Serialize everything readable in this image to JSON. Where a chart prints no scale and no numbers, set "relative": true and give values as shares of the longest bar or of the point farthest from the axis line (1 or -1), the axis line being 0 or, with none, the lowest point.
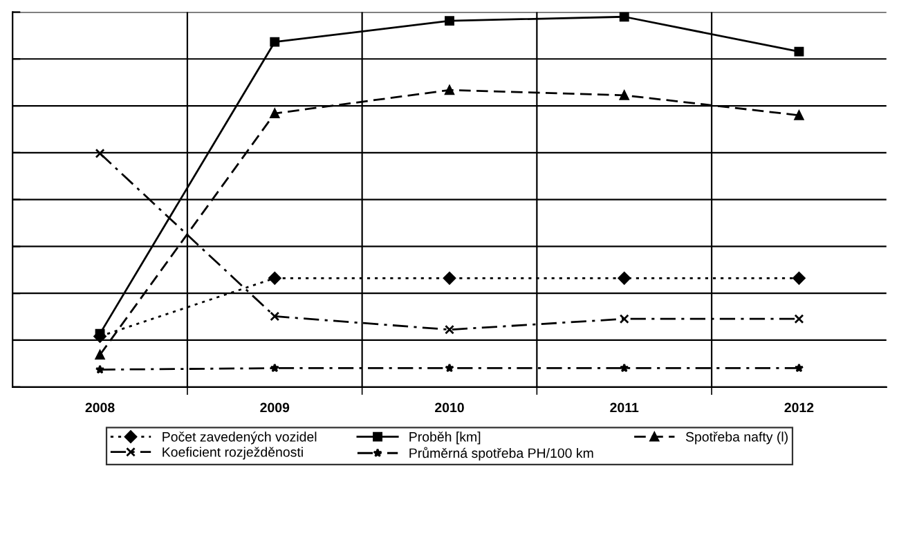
{
  "chart_data": {
    "type": "line",
    "relative": true,
    "categories": [
      "2008",
      "2009",
      "2010",
      "2011",
      "2012"
    ],
    "grid": true,
    "legend": "bottom",
    "series": [
      {
        "name": "Počet zavedených vozidel",
        "color": "#000000",
        "marker": "diamond",
        "line_style": "dotted",
        "values": [
          0.137,
          0.294,
          0.294,
          0.294,
          0.294
        ]
      },
      {
        "name": "Proběh [km]",
        "color": "#000000",
        "marker": "square",
        "line_style": "solid",
        "values": [
          0.144,
          0.932,
          0.989,
          1,
          0.906
        ]
      },
      {
        "name": "Spotřeba nafty (l)",
        "color": "#000000",
        "marker": "triangle",
        "line_style": "dashed",
        "values": [
          0.087,
          0.739,
          0.802,
          0.788,
          0.734
        ]
      },
      {
        "name": "Koeficient rozježděnosti",
        "color": "#000000",
        "marker": "cross",
        "line_style": "dashdot",
        "values": [
          0.631,
          0.191,
          0.155,
          0.184,
          0.184
        ]
      },
      {
        "name": "Průměrná spotřeba PH/100 km",
        "color": "#000000",
        "marker": "star",
        "line_style": "dashdot",
        "values": [
          0.047,
          0.051,
          0.051,
          0.051,
          0.051
        ]
      }
    ]
  }
}
